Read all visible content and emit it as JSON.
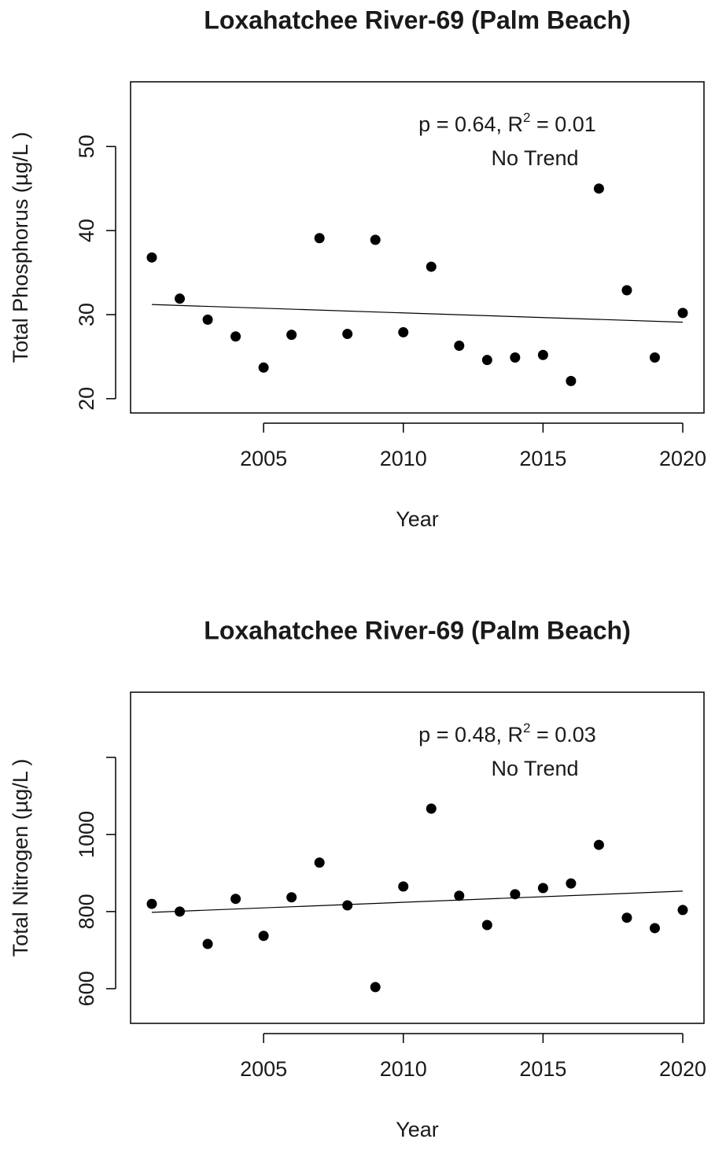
{
  "chart_data": [
    {
      "type": "scatter",
      "title": "Loxahatchee River-69 (Palm Beach)",
      "x_label": "Year",
      "y_label": "Total Phosphorus (µg/L )",
      "x": [
        2001,
        2002,
        2003,
        2004,
        2005,
        2006,
        2007,
        2008,
        2009,
        2010,
        2011,
        2012,
        2013,
        2014,
        2015,
        2016,
        2017,
        2018,
        2019,
        2020
      ],
      "values": [
        36.8,
        31.9,
        29.4,
        27.4,
        23.7,
        27.6,
        39.1,
        27.7,
        38.9,
        27.9,
        35.7,
        26.3,
        24.6,
        24.9,
        25.2,
        22.1,
        45.0,
        32.9,
        24.9,
        30.2
      ],
      "color": "#000000",
      "trend": {
        "x": [
          2001,
          2020
        ],
        "values": [
          31.2,
          29.1
        ]
      },
      "annotation": {
        "stat": [
          "p = 0.64, R",
          "2",
          " = 0.01"
        ],
        "note": "No Trend"
      },
      "xlim": [
        2000.24,
        2020.76
      ],
      "xticks": [
        2005,
        2010,
        2015,
        2020
      ],
      "ylim": [
        18.3,
        57.7
      ],
      "yticks": [
        20,
        30,
        40,
        50
      ]
    },
    {
      "type": "scatter",
      "title": "Loxahatchee River-69 (Palm Beach)",
      "x_label": "Year",
      "y_label": "Total Nitrogen (µg/L )",
      "x": [
        2001,
        2002,
        2003,
        2004,
        2005,
        2006,
        2007,
        2008,
        2009,
        2010,
        2011,
        2012,
        2013,
        2014,
        2015,
        2016,
        2017,
        2018,
        2019,
        2020
      ],
      "values": [
        820,
        800,
        716,
        833,
        737,
        837,
        927,
        816,
        604,
        865,
        1067,
        841,
        765,
        845,
        861,
        873,
        973,
        784,
        757,
        804
      ],
      "color": "#000000",
      "trend": {
        "x": [
          2001,
          2020
        ],
        "values": [
          798,
          853
        ]
      },
      "annotation": {
        "stat": [
          "p = 0.48, R",
          "2",
          " = 0.03"
        ],
        "note": "No Trend"
      },
      "xlim": [
        2000.24,
        2020.76
      ],
      "xticks": [
        2005,
        2010,
        2015,
        2020
      ],
      "ylim": [
        510,
        1369
      ],
      "yticks": [
        600,
        800,
        1000,
        {
          "value": 1200,
          "label": null
        }
      ]
    }
  ]
}
